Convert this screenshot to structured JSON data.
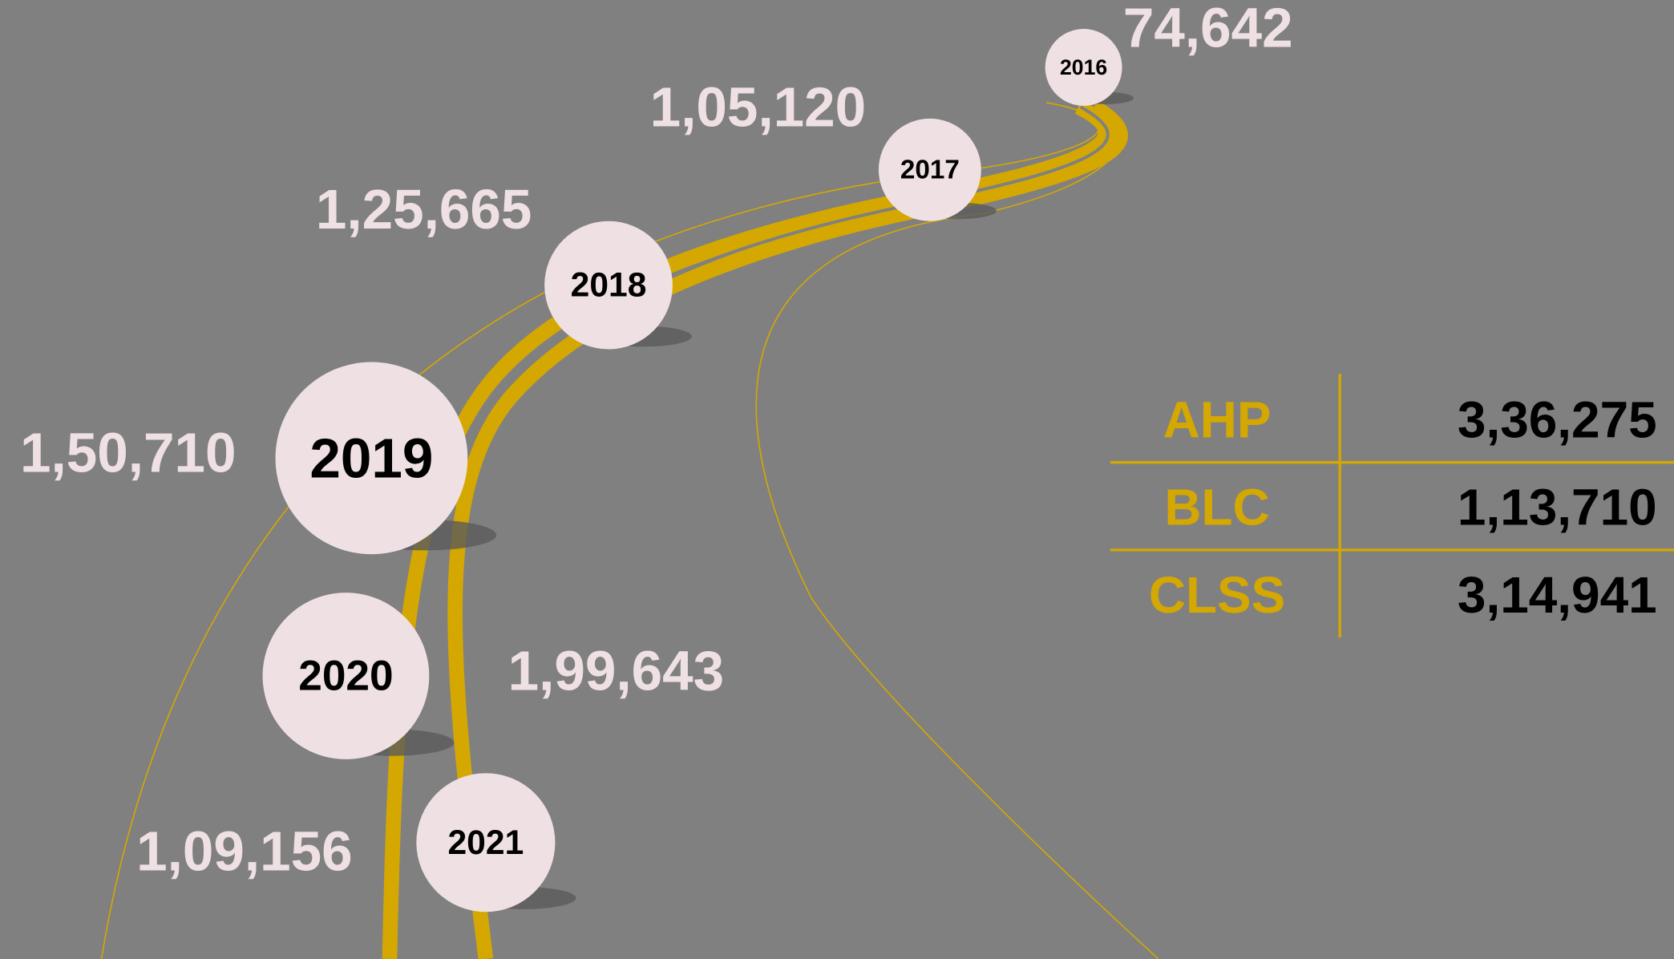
{
  "timeline": [
    {
      "year": "2016",
      "value": "74,642"
    },
    {
      "year": "2017",
      "value": "1,05,120"
    },
    {
      "year": "2018",
      "value": "1,25,665"
    },
    {
      "year": "2019",
      "value": "1,50,710"
    },
    {
      "year": "2020",
      "value": "1,99,643"
    },
    {
      "year": "2021",
      "value": "1,09,156"
    }
  ],
  "table": {
    "rows": [
      [
        "AHP",
        "3,36,275"
      ],
      [
        "BLC",
        "1,13,710"
      ],
      [
        "CLSS",
        "3,14,941"
      ]
    ]
  }
}
